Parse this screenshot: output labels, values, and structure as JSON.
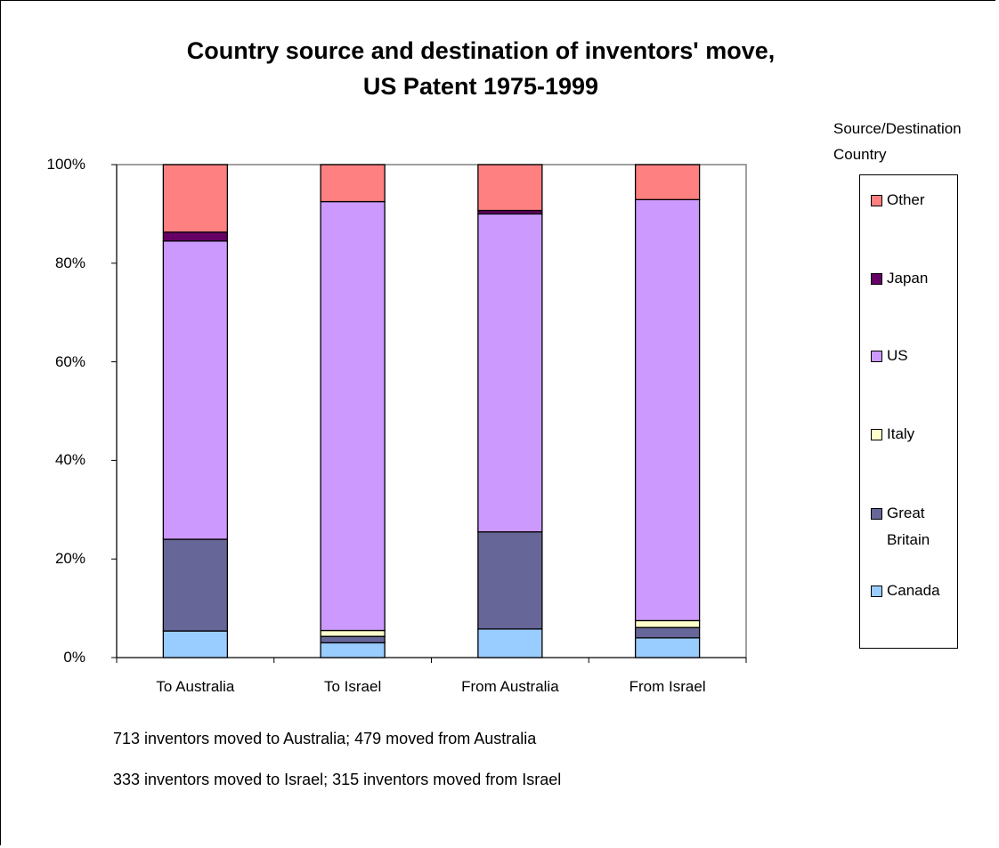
{
  "chart_data": {
    "type": "bar",
    "stacked": true,
    "percent": true,
    "title_lines": [
      "Country source and destination of inventors' move,",
      "US Patent 1975-1999"
    ],
    "xlabel": "",
    "ylabel": "",
    "ylim": [
      0,
      100
    ],
    "yticks": [
      "0%",
      "20%",
      "40%",
      "60%",
      "80%",
      "100%"
    ],
    "categories": [
      "To Australia",
      "To Israel",
      "From Australia",
      "From Israel"
    ],
    "legend_title_lines": [
      "Source/Destination",
      "Country"
    ],
    "legend_position": "right",
    "grid": false,
    "series": [
      {
        "name": "Canada",
        "color": "#99ccff",
        "values": [
          5.4,
          3.0,
          5.8,
          4.0
        ]
      },
      {
        "name": "Great Britain",
        "color": "#666699",
        "values": [
          18.6,
          1.3,
          19.7,
          2.1
        ]
      },
      {
        "name": "Italy",
        "color": "#ffffcc",
        "values": [
          0.0,
          1.2,
          0.0,
          1.4
        ]
      },
      {
        "name": "US",
        "color": "#cc99ff",
        "values": [
          60.5,
          87.0,
          64.5,
          85.4
        ]
      },
      {
        "name": "Japan",
        "color": "#660066",
        "values": [
          1.8,
          0.0,
          0.7,
          0.0
        ]
      },
      {
        "name": "Other",
        "color": "#ff8080",
        "values": [
          13.7,
          7.5,
          9.3,
          7.1
        ]
      }
    ],
    "legend_order": [
      "Other",
      "Japan",
      "US",
      "Italy",
      "Great Britain",
      "Canada"
    ],
    "legend_labels": {
      "Other": [
        "Other"
      ],
      "Japan": [
        "Japan"
      ],
      "US": [
        "US"
      ],
      "Italy": [
        "Italy"
      ],
      "Great Britain": [
        "Great",
        "Britain"
      ],
      "Canada": [
        "Canada"
      ]
    },
    "notes": [
      "713 inventors moved to Australia; 479 moved from Australia",
      "333 inventors moved to Israel; 315 inventors moved from Israel"
    ]
  }
}
